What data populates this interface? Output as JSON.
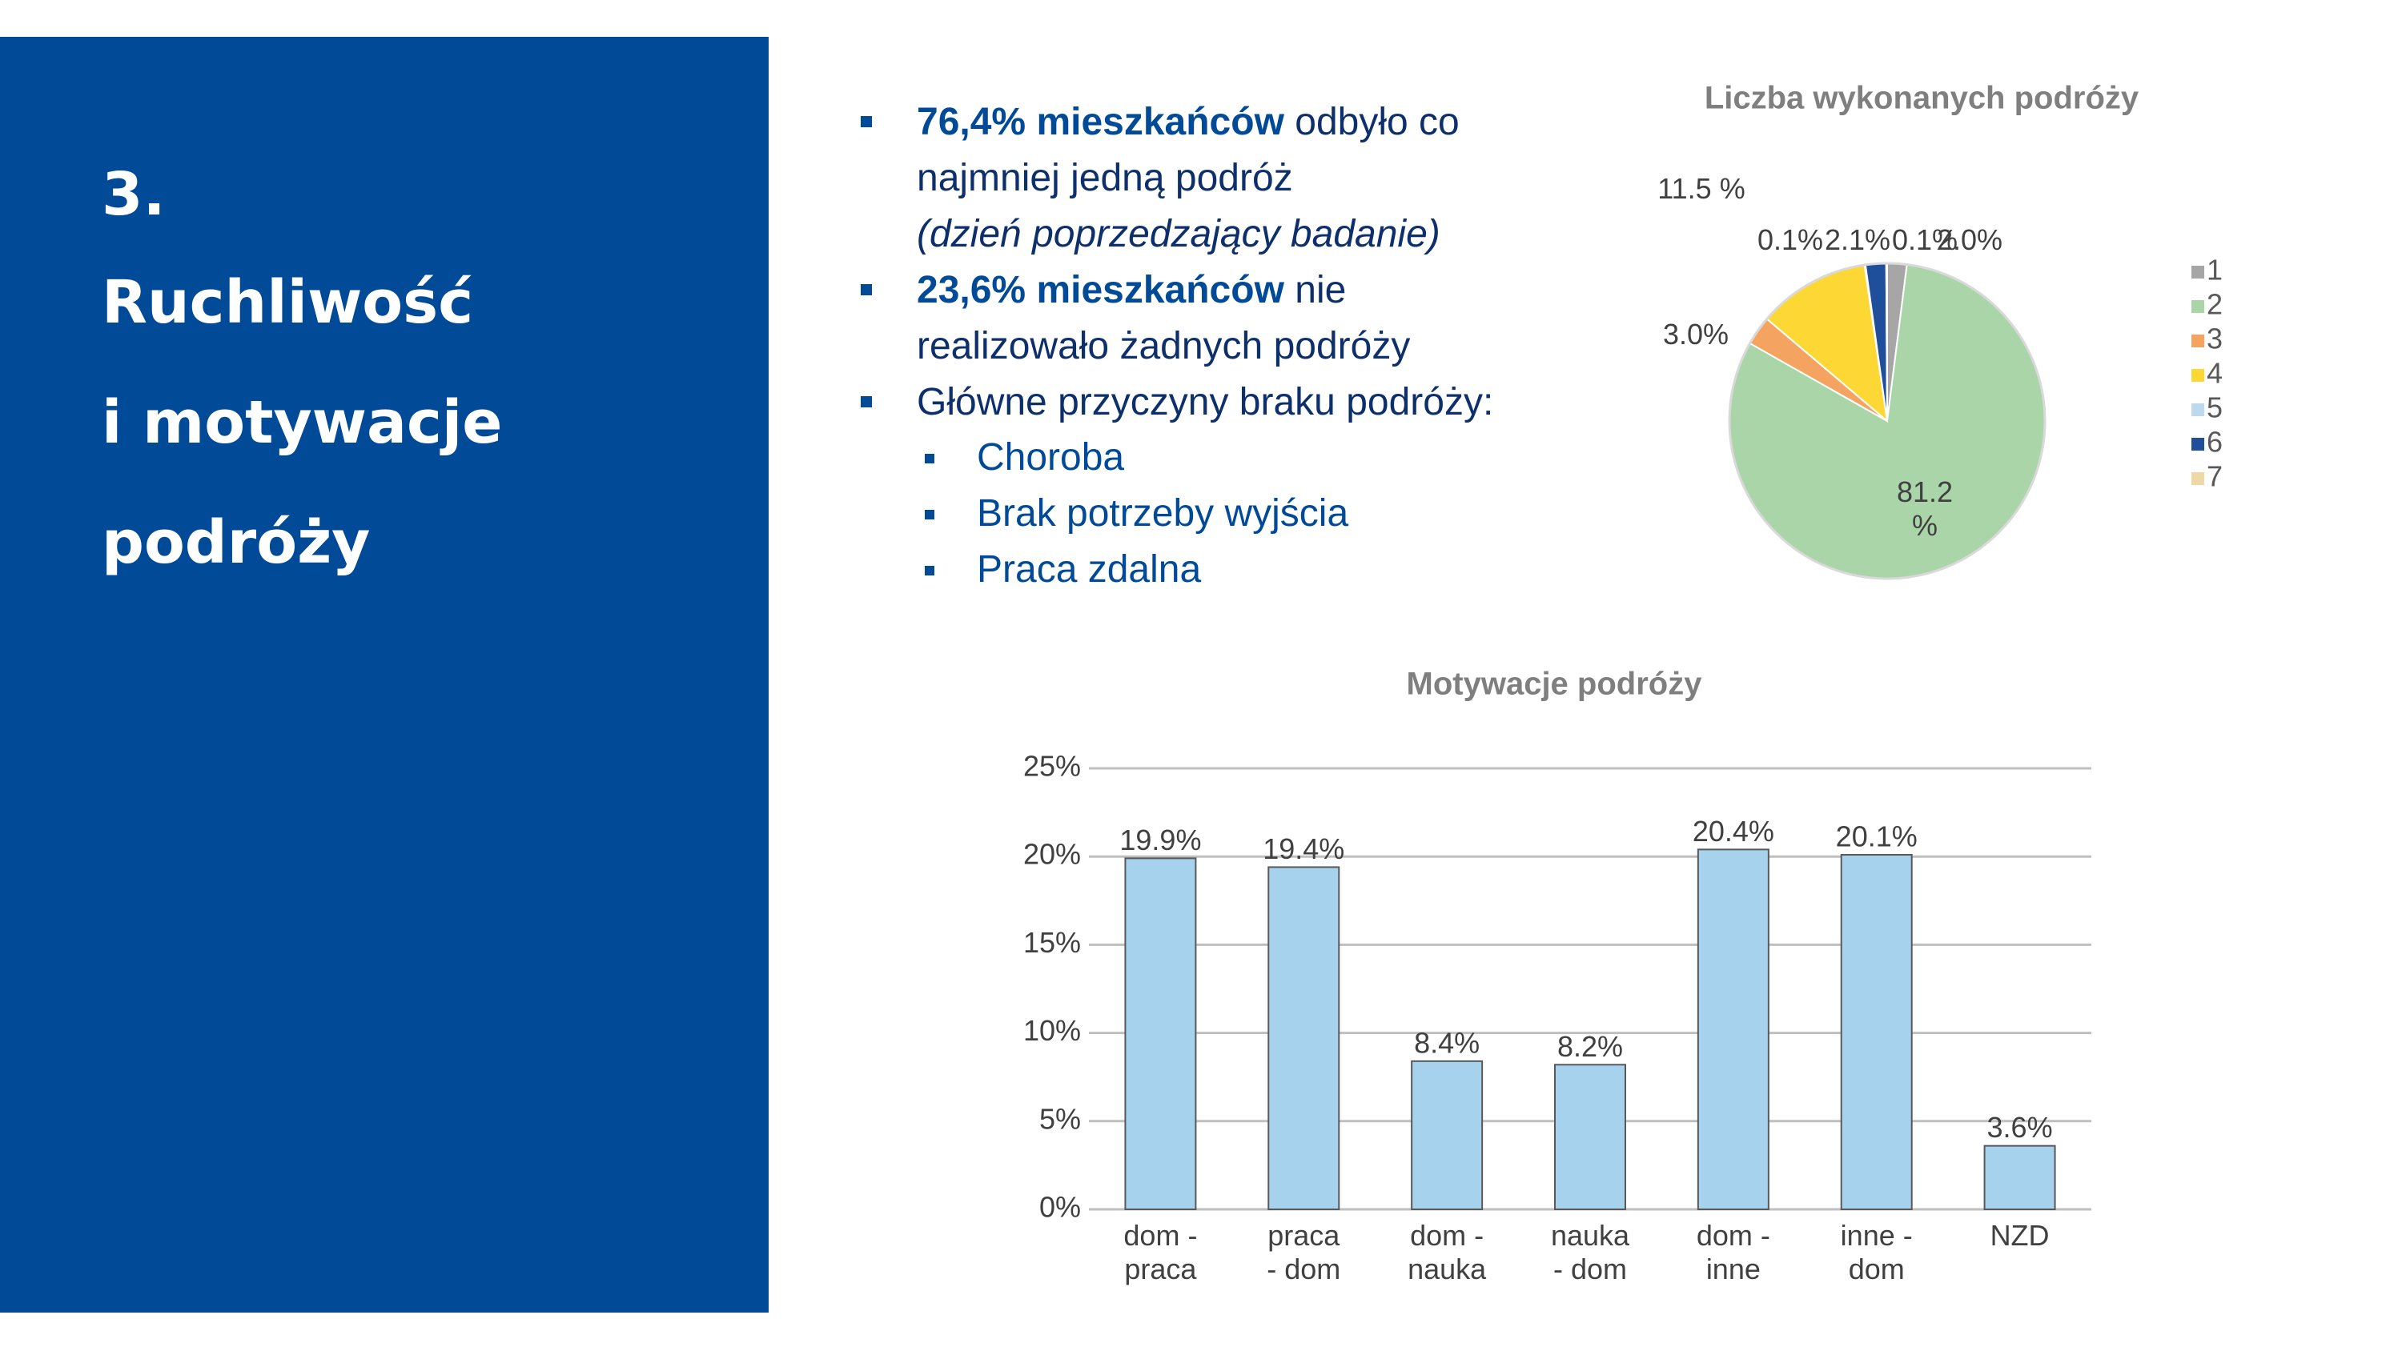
{
  "slide": {
    "title_lines": [
      "3.",
      "Ruchliwość",
      "i motywacje",
      "podróży"
    ],
    "bullets": [
      {
        "bold": "76,4% mieszkańców",
        "text": "odbyło co najmniej jedną podróż",
        "italic": "(dzień poprzedzający badanie)"
      },
      {
        "bold": "23,6% mieszkańców",
        "text": "nie realizowało żadnych podróży"
      },
      {
        "text": "Główne przyczyny braku podróży:"
      }
    ],
    "sub_bullets": [
      "Choroba",
      "Brak potrzeby wyjścia",
      "Praca zdalna"
    ]
  },
  "chart_data": [
    {
      "type": "pie",
      "title": "Liczba wykonanych podróży",
      "categories": [
        "1",
        "2",
        "3",
        "4",
        "5",
        "6",
        "7"
      ],
      "values": [
        2.0,
        81.2,
        3.0,
        11.5,
        0.1,
        2.1,
        0.1
      ],
      "value_labels": [
        "2.0%",
        "81.2 %",
        "3.0%",
        "11.5 %",
        "0.1%",
        "2.1%",
        "0.1%"
      ],
      "colors": [
        "#a6a6a6",
        "#a9d5a9",
        "#f4a460",
        "#fdd835",
        "#bcd9ee",
        "#1f4e9b",
        "#eed9a6"
      ],
      "legend": "right"
    },
    {
      "type": "bar",
      "title": "Motywacje podróży",
      "categories": [
        "dom - praca",
        "praca - dom",
        "dom - nauka",
        "nauka - dom",
        "dom - inne",
        "inne - dom",
        "NZD"
      ],
      "values": [
        19.9,
        19.4,
        8.4,
        8.2,
        20.4,
        20.1,
        3.6
      ],
      "value_labels": [
        "19.9%",
        "19.4%",
        "8.4%",
        "8.2%",
        "20.4%",
        "20.1%",
        "3.6%"
      ],
      "color": "#a6d2ee",
      "ylim": [
        0,
        25
      ],
      "yticks": [
        {
          "value": 0,
          "label": "0%"
        },
        {
          "value": 5,
          "label": "5%"
        },
        {
          "value": 10,
          "label": "10%"
        },
        {
          "value": 15,
          "label": "15%"
        },
        {
          "value": 20,
          "label": "20%"
        },
        {
          "value": 25,
          "label": "25%"
        }
      ],
      "grid": true
    }
  ]
}
